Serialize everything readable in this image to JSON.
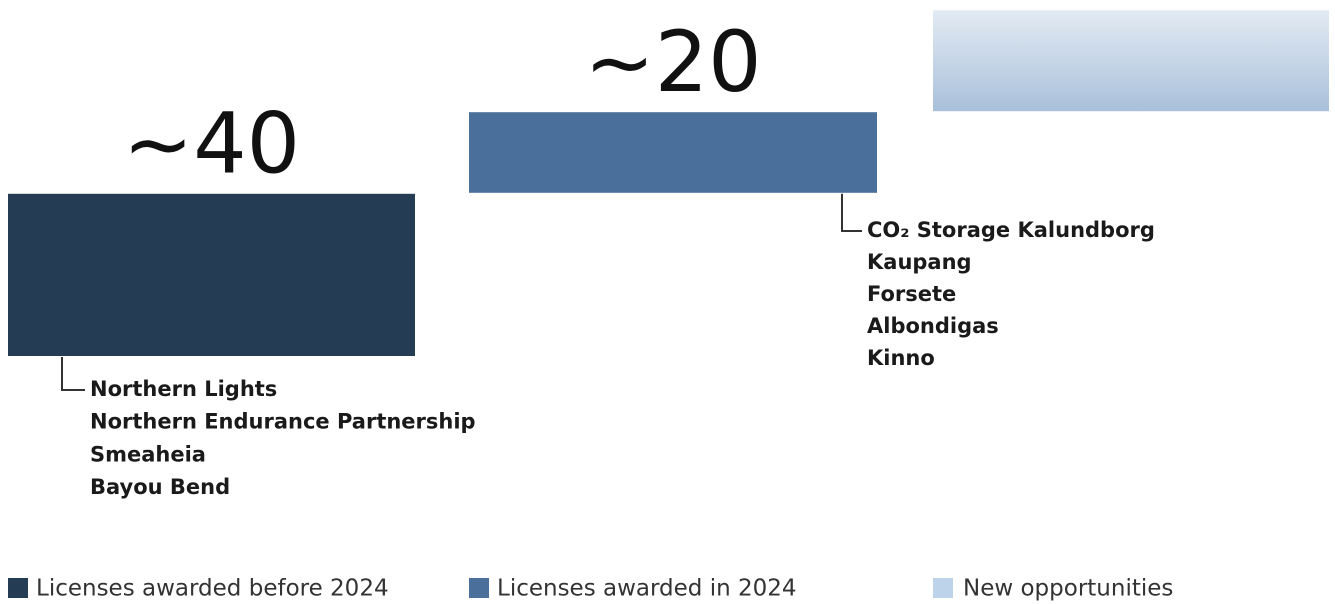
{
  "chart_data": {
    "type": "waterfall",
    "series": [
      {
        "name": "Licenses awarded before 2024",
        "color": "#243d54",
        "values": [
          40
        ],
        "value_labels": [
          "~40"
        ]
      },
      {
        "name": "Licenses awarded in 2024",
        "color": "#4a6f9b",
        "values": [
          20
        ],
        "value_labels": [
          "~20"
        ]
      },
      {
        "name": "New opportunities",
        "color": "#bcd3ea",
        "values": [
          25
        ]
      }
    ],
    "projects": [
      [
        "Northern Lights",
        "Northern Endurance Partnership",
        "Smeaheia",
        "Bayou Bend"
      ],
      [
        "CO₂ Storage Kalundborg",
        "Kaupang",
        "Forsete",
        "Albondigas",
        "Kinno"
      ]
    ]
  }
}
